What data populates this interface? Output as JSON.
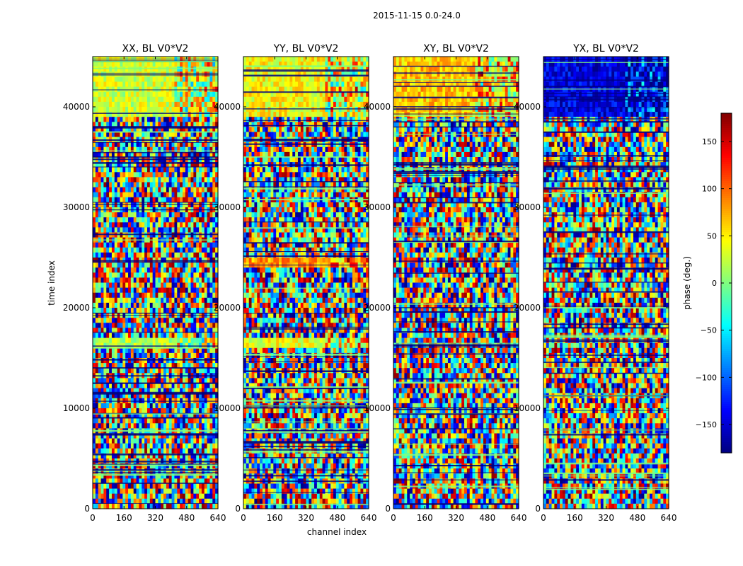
{
  "chart_data": {
    "type": "heatmap",
    "suptitle": "2015-11-15 0.0-24.0",
    "xlabel": "channel index",
    "ylabel": "time index",
    "xlim": [
      0,
      640
    ],
    "ylim": [
      0,
      45000
    ],
    "xticks": [
      0,
      160,
      320,
      480,
      640
    ],
    "xtick_labels": [
      "0",
      "160",
      "320",
      "480",
      "640"
    ],
    "yticks": [
      0,
      10000,
      20000,
      30000,
      40000
    ],
    "ytick_labels": [
      "0",
      "10000",
      "20000",
      "30000",
      "40000"
    ],
    "colormap": "jet",
    "panels": [
      {
        "title": "XX, BL V0*V2",
        "pol": "XX",
        "smooth_regions": [
          [
            39000,
            45000,
            0.58
          ],
          [
            16000,
            17000,
            0.55
          ]
        ]
      },
      {
        "title": "YY, BL V0*V2",
        "pol": "YY",
        "smooth_regions": [
          [
            39000,
            45000,
            0.62
          ],
          [
            24000,
            25000,
            0.72
          ],
          [
            16000,
            17000,
            0.6
          ]
        ]
      },
      {
        "title": "XY, BL V0*V2",
        "pol": "XY",
        "smooth_regions": [
          [
            39000,
            45000,
            0.68
          ]
        ]
      },
      {
        "title": "YX, BL V0*V2",
        "pol": "YX",
        "smooth_regions": [
          [
            39000,
            45000,
            0.1
          ]
        ]
      }
    ],
    "colorbar": {
      "label": "phase (deg.)",
      "vmin": -180,
      "vmax": 180,
      "ticks": [
        150,
        100,
        50,
        0,
        -50,
        -100,
        -150
      ],
      "tick_labels": [
        "150",
        "100",
        "50",
        "0",
        "−50",
        "−100",
        "−150"
      ]
    }
  }
}
